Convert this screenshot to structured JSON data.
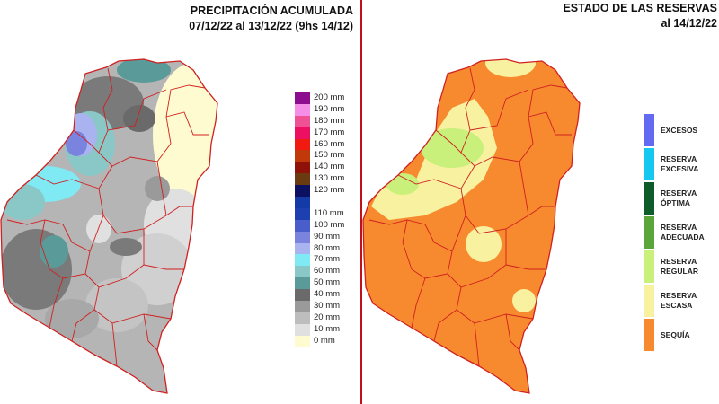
{
  "left": {
    "title_line1": "PRECIPITACIÓN ACUMULADA",
    "title_line2": "07/12/22 al 13/12/22 (9hs 14/12)",
    "legend": [
      {
        "label": "200 mm",
        "color": "#8c0d8e"
      },
      {
        "label": "190 mm",
        "color": "#f58ee6"
      },
      {
        "label": "180 mm",
        "color": "#ef5294"
      },
      {
        "label": "170 mm",
        "color": "#ee1060"
      },
      {
        "label": "160 mm",
        "color": "#f01a10"
      },
      {
        "label": "150 mm",
        "color": "#c1380b"
      },
      {
        "label": "140 mm",
        "color": "#8e1208"
      },
      {
        "label": "130 mm",
        "color": "#6a3a10"
      },
      {
        "label": "120 mm",
        "color": "#0c1060"
      },
      {
        "label": "",
        "color": "#143aa8"
      },
      {
        "label": "110 mm",
        "color": "#1e3fb0"
      },
      {
        "label": "100 mm",
        "color": "#4a5ecb"
      },
      {
        "label": "90 mm",
        "color": "#7a83de"
      },
      {
        "label": "80 mm",
        "color": "#a9b3ef"
      },
      {
        "label": "70 mm",
        "color": "#7fe9f4"
      },
      {
        "label": "60 mm",
        "color": "#8ac8c8"
      },
      {
        "label": "50 mm",
        "color": "#5a9a98"
      },
      {
        "label": "40 mm",
        "color": "#6a6a6a"
      },
      {
        "label": "30 mm",
        "color": "#9a9a9a"
      },
      {
        "label": "20 mm",
        "color": "#bdbdbd"
      },
      {
        "label": "10 mm",
        "color": "#e0e0e0"
      },
      {
        "label": "0 mm",
        "color": "#fffbd0"
      }
    ]
  },
  "right": {
    "title_line1": "ESTADO DE LAS RESERVAS",
    "title_line2": "al 14/12/22",
    "legend": [
      {
        "line1": "EXCESOS",
        "line2": "",
        "color": "#6369f0"
      },
      {
        "line1": "RESERVA",
        "line2": "EXCESIVA",
        "color": "#15c8f0"
      },
      {
        "line1": "RESERVA",
        "line2": "ÓPTIMA",
        "color": "#0d5c2a"
      },
      {
        "line1": "RESERVA",
        "line2": "ADECUADA",
        "color": "#5aa63a"
      },
      {
        "line1": "RESERVA",
        "line2": "REGULAR",
        "color": "#c8f07a"
      },
      {
        "line1": "RESERVA",
        "line2": "ESCASA",
        "color": "#f8f2a0"
      },
      {
        "line1": "SEQUÍA",
        "line2": "",
        "color": "#f78a2e"
      }
    ]
  }
}
